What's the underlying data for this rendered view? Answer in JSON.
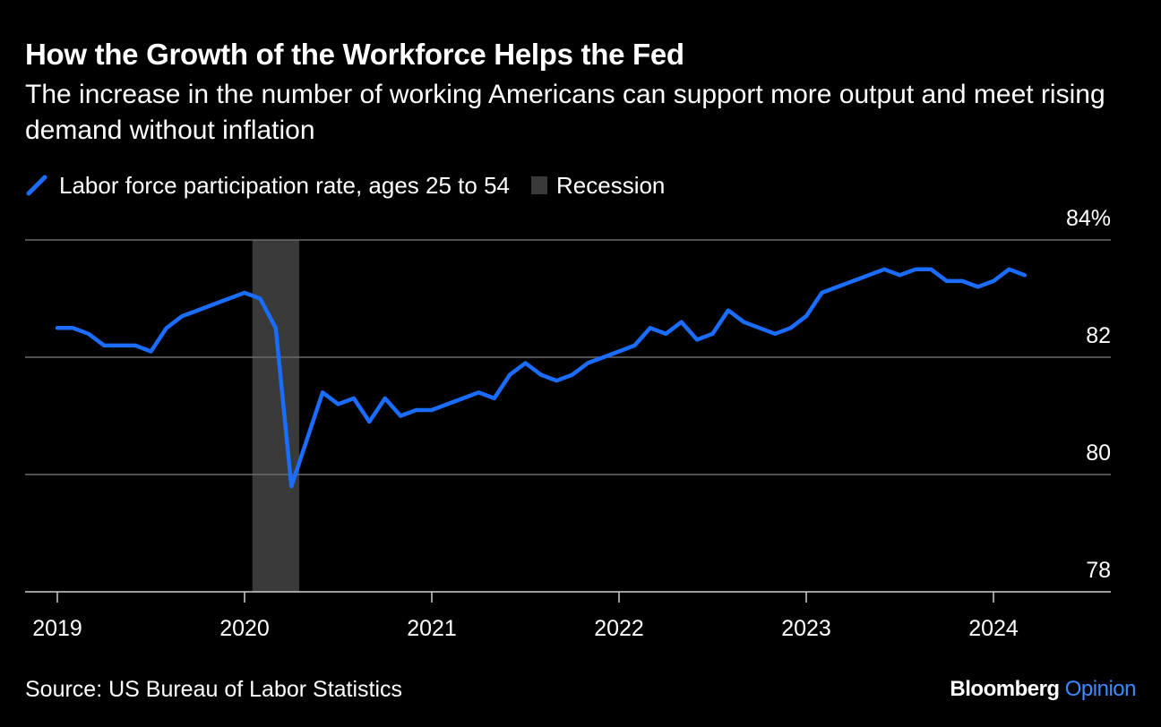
{
  "header": {
    "title": "How the Growth of the Workforce Helps the Fed",
    "subtitle": "The increase in the number of working Americans can support more output and meet rising demand without inflation"
  },
  "footer": {
    "source": "Source: US Bureau of Labor Statistics",
    "brand_primary": "Bloomberg",
    "brand_secondary": "Opinion"
  },
  "colors": {
    "background": "#000000",
    "series": "#1a6dff",
    "recession": "#3a3a3a",
    "grid": "#6b6b6b",
    "axis": "#cfcfcf",
    "brand_accent": "#3b8bff"
  },
  "chart_data": {
    "type": "line",
    "title": "How the Growth of the Workforce Helps the Fed",
    "legend": "top-left",
    "y_axis": {
      "min": 78,
      "max": 84,
      "ticks": [
        78,
        80,
        82,
        84
      ],
      "tick_labels": [
        "78",
        "80",
        "82",
        "84%"
      ],
      "position": "right",
      "grid": true
    },
    "x_axis": {
      "start": "2019-01",
      "end": "2024-12",
      "ticks": [
        "2019-01",
        "2020-01",
        "2021-01",
        "2022-01",
        "2023-01",
        "2024-01"
      ],
      "tick_labels": [
        "2019",
        "2020",
        "2021",
        "2022",
        "2023",
        "2024"
      ]
    },
    "series": [
      {
        "name": "Labor force participation rate, ages 25 to 54",
        "x": [
          "2019-01",
          "2019-02",
          "2019-03",
          "2019-04",
          "2019-05",
          "2019-06",
          "2019-07",
          "2019-08",
          "2019-09",
          "2019-10",
          "2019-11",
          "2019-12",
          "2020-01",
          "2020-02",
          "2020-03",
          "2020-04",
          "2020-05",
          "2020-06",
          "2020-07",
          "2020-08",
          "2020-09",
          "2020-10",
          "2020-11",
          "2020-12",
          "2021-01",
          "2021-02",
          "2021-03",
          "2021-04",
          "2021-05",
          "2021-06",
          "2021-07",
          "2021-08",
          "2021-09",
          "2021-10",
          "2021-11",
          "2021-12",
          "2022-01",
          "2022-02",
          "2022-03",
          "2022-04",
          "2022-05",
          "2022-06",
          "2022-07",
          "2022-08",
          "2022-09",
          "2022-10",
          "2022-11",
          "2022-12",
          "2023-01",
          "2023-02",
          "2023-03",
          "2023-04",
          "2023-05",
          "2023-06",
          "2023-07",
          "2023-08",
          "2023-09",
          "2023-10",
          "2023-11",
          "2023-12",
          "2024-01",
          "2024-02",
          "2024-03"
        ],
        "values": [
          82.5,
          82.5,
          82.4,
          82.2,
          82.2,
          82.2,
          82.1,
          82.5,
          82.7,
          82.8,
          82.9,
          83.0,
          83.1,
          83.0,
          82.5,
          79.8,
          80.6,
          81.4,
          81.2,
          81.3,
          80.9,
          81.3,
          81.0,
          81.1,
          81.1,
          81.2,
          81.3,
          81.4,
          81.3,
          81.7,
          81.9,
          81.7,
          81.6,
          81.7,
          81.9,
          82.0,
          82.1,
          82.2,
          82.5,
          82.4,
          82.6,
          82.3,
          82.4,
          82.8,
          82.6,
          82.5,
          82.4,
          82.5,
          82.7,
          83.1,
          83.2,
          83.3,
          83.4,
          83.5,
          83.4,
          83.5,
          83.5,
          83.3,
          83.3,
          83.2,
          83.3,
          83.5,
          83.4
        ]
      }
    ],
    "recession_label": "Recession",
    "recession_periods": [
      {
        "start": "2020-02",
        "end": "2020-04"
      }
    ]
  }
}
